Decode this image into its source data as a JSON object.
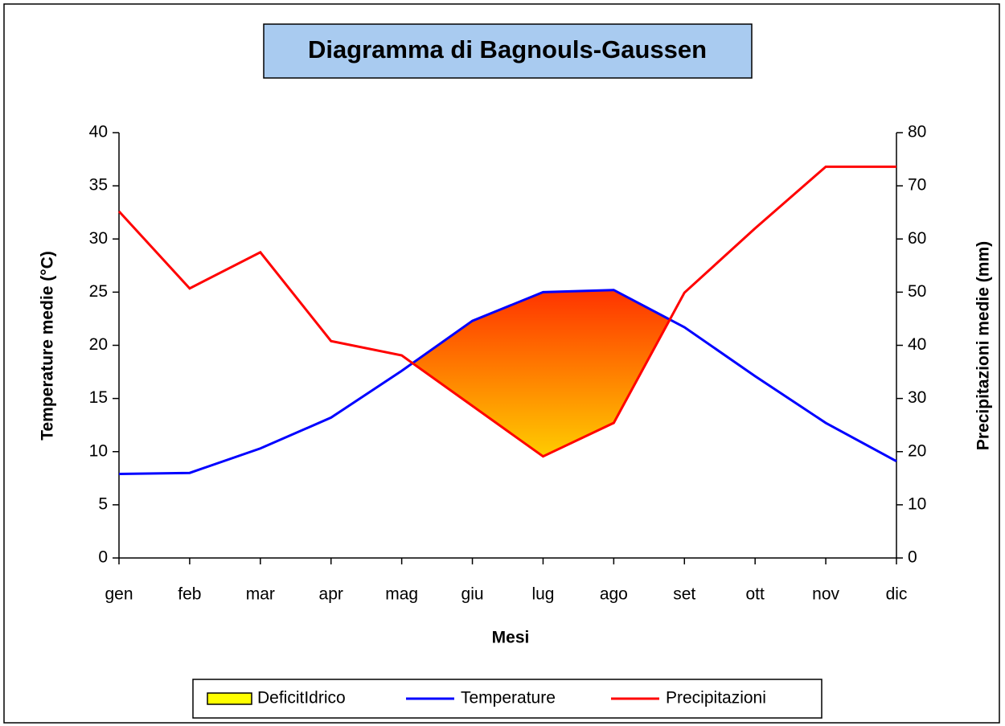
{
  "chart_data": {
    "type": "line",
    "title": "Diagramma di Bagnouls-Gaussen",
    "x_label": "Mesi",
    "y_label": "Temperature medie (°C)",
    "y2_label": "Precipitazioni medie (mm)",
    "categories": [
      "gen",
      "feb",
      "mar",
      "apr",
      "mag",
      "giu",
      "lug",
      "ago",
      "set",
      "ott",
      "nov",
      "dic"
    ],
    "ylim": [
      0,
      40
    ],
    "yticks": [
      0,
      5,
      10,
      15,
      20,
      25,
      30,
      35,
      40
    ],
    "y2lim": [
      0,
      80
    ],
    "y2ticks": [
      0,
      10,
      20,
      30,
      40,
      50,
      60,
      70,
      80
    ],
    "deficit": {
      "name": "DeficitIdrico",
      "color": "#ffff00",
      "gradient": [
        "#ff3300",
        "#ffcc00"
      ]
    },
    "series": [
      {
        "name": "Temperature",
        "color": "#0000ff",
        "values": [
          7.9,
          8.0,
          10.3,
          13.2,
          17.6,
          22.3,
          25.0,
          25.2,
          21.7,
          17.1,
          12.7,
          9.1
        ]
      },
      {
        "name": "Precipitazioni",
        "color": "#ff0000",
        "axis": "y2",
        "values": [
          65.2,
          50.7,
          57.5,
          40.8,
          38.1,
          28.6,
          19.1,
          25.4,
          49.9,
          62.0,
          73.6,
          73.6
        ]
      }
    ],
    "legend": "bottom"
  }
}
